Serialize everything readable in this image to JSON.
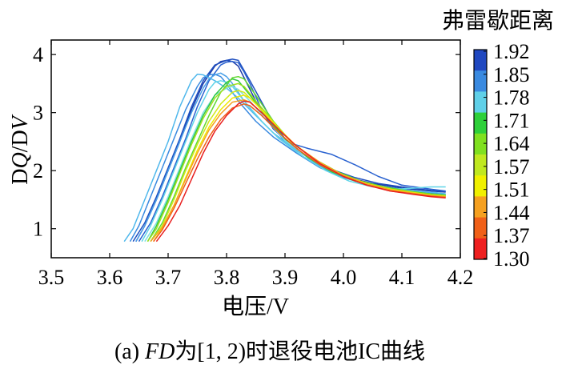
{
  "caption": {
    "prefix": "(a) ",
    "italic_part": "FD",
    "rest": "为[1, 2)时退役电池IC曲线"
  },
  "chart_data": {
    "type": "line",
    "title": "",
    "xlabel": "电压/V",
    "ylabel_parts": [
      "D",
      "Q",
      "/D",
      "V"
    ],
    "xlim": [
      3.5,
      4.2
    ],
    "ylim": [
      0.5,
      4.25
    ],
    "x_ticks": [
      3.5,
      3.6,
      3.7,
      3.8,
      3.9,
      4.0,
      4.1,
      4.2
    ],
    "x_tick_labels": [
      "3.5",
      "3.6",
      "3.7",
      "3.8",
      "3.9",
      "4.0",
      "4.1",
      "4.2"
    ],
    "y_ticks": [
      1,
      2,
      3,
      4
    ],
    "y_tick_labels": [
      "1",
      "2",
      "3",
      "4"
    ],
    "grid": false,
    "colorbar": {
      "title": "弗雷歇距离",
      "min": 1.3,
      "max": 1.92,
      "tick_labels": [
        "1.92",
        "1.85",
        "1.78",
        "1.71",
        "1.64",
        "1.57",
        "1.51",
        "1.44",
        "1.37",
        "1.30"
      ],
      "colors": [
        "#2048c0",
        "#3a8ae0",
        "#60d0e8",
        "#2ed03a",
        "#80e020",
        "#c0e820",
        "#f0f000",
        "#f5a020",
        "#f06018",
        "#ee2020"
      ]
    },
    "series": [
      {
        "color": "#1a3aa8",
        "x": [
          3.645,
          3.66,
          3.68,
          3.7,
          3.72,
          3.74,
          3.76,
          3.78,
          3.79,
          3.8,
          3.81,
          3.82,
          3.83,
          3.85,
          3.88,
          3.92,
          3.96,
          4.0,
          4.05,
          4.1,
          4.15,
          4.175
        ],
        "y": [
          0.78,
          1.05,
          1.5,
          2.0,
          2.5,
          3.05,
          3.5,
          3.8,
          3.88,
          3.9,
          3.88,
          3.8,
          3.6,
          3.2,
          2.72,
          2.35,
          2.1,
          1.9,
          1.78,
          1.7,
          1.65,
          1.63
        ]
      },
      {
        "color": "#2050c0",
        "x": [
          3.64,
          3.66,
          3.68,
          3.7,
          3.72,
          3.74,
          3.76,
          3.78,
          3.8,
          3.81,
          3.82,
          3.84,
          3.87,
          3.9,
          3.94,
          3.98,
          4.02,
          4.06,
          4.1,
          4.15,
          4.175
        ],
        "y": [
          0.78,
          1.1,
          1.55,
          2.05,
          2.55,
          3.1,
          3.55,
          3.82,
          3.9,
          3.92,
          3.9,
          3.55,
          3.0,
          2.55,
          2.22,
          2.02,
          1.88,
          1.78,
          1.72,
          1.66,
          1.64
        ]
      },
      {
        "color": "#2a62d0",
        "x": [
          3.65,
          3.67,
          3.69,
          3.71,
          3.73,
          3.75,
          3.77,
          3.79,
          3.8,
          3.81,
          3.82,
          3.83,
          3.84,
          3.86,
          3.88,
          3.9,
          3.94,
          3.98,
          4.02,
          4.06,
          4.1,
          4.15,
          4.175
        ],
        "y": [
          0.78,
          1.1,
          1.55,
          2.05,
          2.55,
          3.1,
          3.55,
          3.82,
          3.87,
          3.88,
          3.86,
          3.7,
          3.5,
          3.05,
          2.75,
          2.5,
          2.38,
          2.28,
          2.1,
          1.9,
          1.75,
          1.68,
          1.65
        ]
      },
      {
        "color": "#3a8ae0",
        "x": [
          3.635,
          3.65,
          3.67,
          3.69,
          3.71,
          3.73,
          3.75,
          3.76,
          3.77,
          3.78,
          3.79,
          3.8,
          3.82,
          3.85,
          3.88,
          3.92,
          3.96,
          4.0,
          4.05,
          4.1,
          4.15,
          4.175
        ],
        "y": [
          0.78,
          1.05,
          1.55,
          2.05,
          2.55,
          3.05,
          3.45,
          3.6,
          3.65,
          3.66,
          3.62,
          3.5,
          3.2,
          2.85,
          2.58,
          2.3,
          2.05,
          1.88,
          1.75,
          1.68,
          1.62,
          1.6
        ]
      },
      {
        "color": "#4aa0e8",
        "x": [
          3.645,
          3.66,
          3.68,
          3.7,
          3.72,
          3.74,
          3.76,
          3.77,
          3.78,
          3.79,
          3.8,
          3.81,
          3.83,
          3.86,
          3.89,
          3.93,
          3.97,
          4.01,
          4.05,
          4.1,
          4.15,
          4.175
        ],
        "y": [
          0.78,
          1.05,
          1.5,
          2.0,
          2.5,
          3.0,
          3.42,
          3.58,
          3.65,
          3.68,
          3.62,
          3.5,
          3.2,
          2.85,
          2.55,
          2.25,
          2.02,
          1.85,
          1.74,
          1.66,
          1.6,
          1.58
        ]
      },
      {
        "color": "#50b8ec",
        "x": [
          3.625,
          3.64,
          3.66,
          3.68,
          3.7,
          3.72,
          3.74,
          3.75,
          3.76,
          3.78,
          3.8,
          3.82,
          3.85,
          3.88,
          3.92,
          3.96,
          4.0,
          4.04,
          4.08,
          4.12,
          4.16,
          4.175
        ],
        "y": [
          0.78,
          1.0,
          1.5,
          2.0,
          2.5,
          3.1,
          3.55,
          3.66,
          3.65,
          3.55,
          3.42,
          3.25,
          2.95,
          2.65,
          2.35,
          2.1,
          1.9,
          1.78,
          1.7,
          1.65,
          1.62,
          1.6
        ]
      },
      {
        "color": "#60d4e8",
        "x": [
          3.655,
          3.67,
          3.69,
          3.71,
          3.73,
          3.75,
          3.77,
          3.78,
          3.79,
          3.8,
          3.81,
          3.83,
          3.86,
          3.89,
          3.93,
          3.97,
          4.01,
          4.05,
          4.09,
          4.12,
          4.15,
          4.175
        ],
        "y": [
          0.78,
          1.05,
          1.5,
          2.0,
          2.5,
          3.0,
          3.4,
          3.52,
          3.55,
          3.52,
          3.45,
          3.2,
          2.85,
          2.55,
          2.25,
          2.0,
          1.82,
          1.72,
          1.68,
          1.7,
          1.72,
          1.72
        ]
      },
      {
        "color": "#80e0e0",
        "x": [
          3.66,
          3.68,
          3.7,
          3.72,
          3.74,
          3.76,
          3.78,
          3.8,
          3.81,
          3.82,
          3.84,
          3.87,
          3.9,
          3.94,
          3.98,
          4.02,
          4.06,
          4.1,
          4.15,
          4.175
        ],
        "y": [
          0.78,
          1.1,
          1.55,
          2.05,
          2.55,
          3.0,
          3.3,
          3.42,
          3.45,
          3.4,
          3.2,
          2.85,
          2.52,
          2.22,
          1.98,
          1.82,
          1.72,
          1.66,
          1.6,
          1.58
        ]
      },
      {
        "color": "#30c840",
        "x": [
          3.665,
          3.68,
          3.7,
          3.72,
          3.74,
          3.76,
          3.78,
          3.8,
          3.81,
          3.82,
          3.84,
          3.87,
          3.9,
          3.94,
          3.98,
          4.02,
          4.06,
          4.1,
          4.15,
          4.175
        ],
        "y": [
          0.78,
          1.05,
          1.5,
          2.0,
          2.5,
          2.95,
          3.3,
          3.52,
          3.58,
          3.55,
          3.3,
          2.9,
          2.55,
          2.22,
          1.98,
          1.82,
          1.72,
          1.65,
          1.6,
          1.58
        ]
      },
      {
        "color": "#60d830",
        "x": [
          3.67,
          3.69,
          3.71,
          3.73,
          3.75,
          3.77,
          3.79,
          3.81,
          3.82,
          3.83,
          3.85,
          3.88,
          3.91,
          3.95,
          3.99,
          4.03,
          4.07,
          4.11,
          4.15,
          4.175
        ],
        "y": [
          0.78,
          1.1,
          1.55,
          2.05,
          2.5,
          2.95,
          3.35,
          3.6,
          3.62,
          3.58,
          3.3,
          2.85,
          2.5,
          2.2,
          1.98,
          1.82,
          1.72,
          1.65,
          1.6,
          1.58
        ]
      },
      {
        "color": "#a0e020",
        "x": [
          3.665,
          3.68,
          3.7,
          3.72,
          3.74,
          3.76,
          3.78,
          3.8,
          3.82,
          3.83,
          3.85,
          3.88,
          3.91,
          3.95,
          3.99,
          4.03,
          4.07,
          4.11,
          4.15,
          4.175
        ],
        "y": [
          0.78,
          1.0,
          1.45,
          1.95,
          2.45,
          2.9,
          3.25,
          3.45,
          3.5,
          3.45,
          3.2,
          2.85,
          2.5,
          2.2,
          1.97,
          1.8,
          1.7,
          1.64,
          1.58,
          1.56
        ]
      },
      {
        "color": "#d0e818",
        "x": [
          3.67,
          3.69,
          3.71,
          3.73,
          3.75,
          3.77,
          3.79,
          3.81,
          3.82,
          3.83,
          3.85,
          3.88,
          3.91,
          3.95,
          3.99,
          4.03,
          4.07,
          4.11,
          4.15,
          4.175
        ],
        "y": [
          0.78,
          1.05,
          1.5,
          2.0,
          2.45,
          2.85,
          3.15,
          3.35,
          3.38,
          3.35,
          3.15,
          2.82,
          2.5,
          2.2,
          1.96,
          1.8,
          1.7,
          1.63,
          1.58,
          1.56
        ]
      },
      {
        "color": "#f0e800",
        "x": [
          3.675,
          3.69,
          3.71,
          3.73,
          3.75,
          3.77,
          3.79,
          3.81,
          3.83,
          3.84,
          3.86,
          3.89,
          3.92,
          3.96,
          4.0,
          4.04,
          4.08,
          4.12,
          4.15,
          4.175
        ],
        "y": [
          0.78,
          1.0,
          1.4,
          1.88,
          2.35,
          2.75,
          3.05,
          3.25,
          3.3,
          3.25,
          3.05,
          2.72,
          2.42,
          2.14,
          1.92,
          1.78,
          1.68,
          1.62,
          1.58,
          1.56
        ]
      },
      {
        "color": "#f5a020",
        "x": [
          3.67,
          3.69,
          3.71,
          3.73,
          3.75,
          3.77,
          3.79,
          3.81,
          3.83,
          3.84,
          3.86,
          3.89,
          3.92,
          3.96,
          4.0,
          4.04,
          4.08,
          4.12,
          4.15,
          4.175
        ],
        "y": [
          0.78,
          1.02,
          1.4,
          1.85,
          2.3,
          2.7,
          2.98,
          3.18,
          3.22,
          3.18,
          3.0,
          2.7,
          2.42,
          2.14,
          1.92,
          1.77,
          1.67,
          1.61,
          1.57,
          1.55
        ]
      },
      {
        "color": "#f06018",
        "x": [
          3.675,
          3.69,
          3.71,
          3.73,
          3.75,
          3.77,
          3.79,
          3.81,
          3.83,
          3.84,
          3.86,
          3.89,
          3.92,
          3.96,
          4.0,
          4.04,
          4.08,
          4.12,
          4.15,
          4.175
        ],
        "y": [
          0.78,
          0.98,
          1.35,
          1.78,
          2.2,
          2.58,
          2.88,
          3.08,
          3.15,
          3.12,
          2.95,
          2.65,
          2.38,
          2.1,
          1.9,
          1.75,
          1.65,
          1.6,
          1.56,
          1.54
        ]
      },
      {
        "color": "#e82020",
        "x": [
          3.68,
          3.7,
          3.72,
          3.74,
          3.76,
          3.78,
          3.8,
          3.82,
          3.83,
          3.84,
          3.86,
          3.89,
          3.92,
          3.96,
          4.0,
          4.04,
          4.08,
          4.12,
          4.15,
          4.175
        ],
        "y": [
          0.78,
          1.05,
          1.4,
          1.85,
          2.3,
          2.68,
          2.95,
          3.15,
          3.2,
          3.18,
          3.0,
          2.7,
          2.42,
          2.12,
          1.9,
          1.75,
          1.65,
          1.59,
          1.55,
          1.53
        ]
      }
    ]
  }
}
